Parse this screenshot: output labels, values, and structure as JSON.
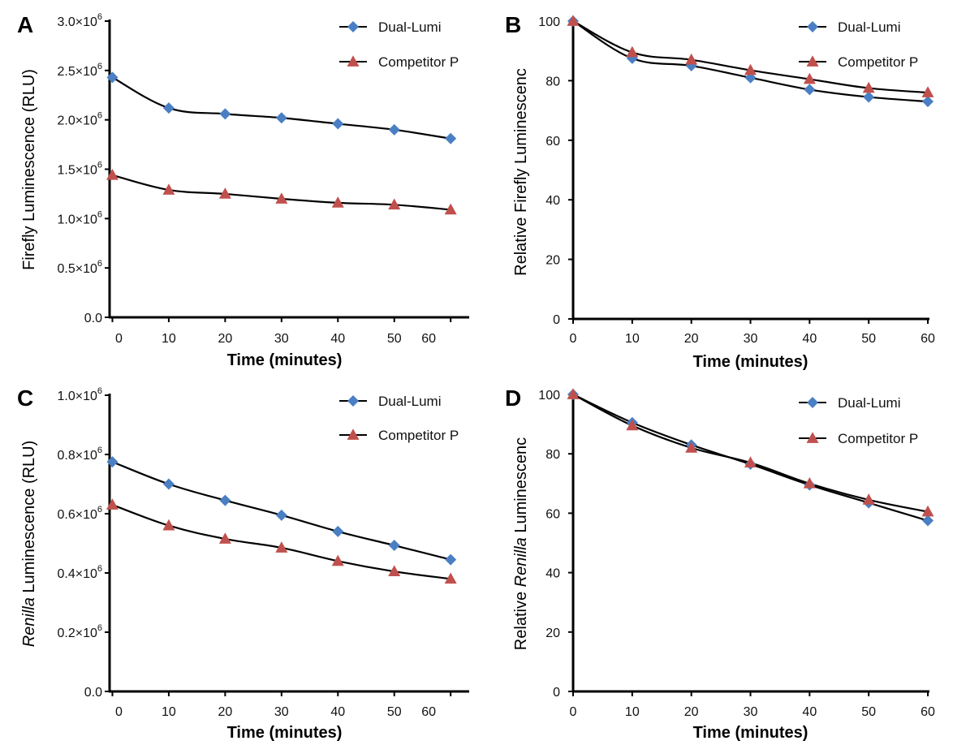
{
  "colors": {
    "diamond": "#4a7fc4",
    "triangle": "#c0504d",
    "line": "#000000"
  },
  "chart_data": [
    {
      "panel": "A",
      "type": "line",
      "xlabel": "Time (minutes)",
      "ylabel_parts": [
        {
          "text": "Firefly Luminescence (RLU)",
          "italic": false
        }
      ],
      "ylim": [
        0,
        3000000
      ],
      "y_ticks": [
        {
          "value": 0,
          "label": "0.0"
        },
        {
          "value": 500000,
          "label": "0.5×10",
          "exp": "6"
        },
        {
          "value": 1000000,
          "label": "1.0×10",
          "exp": "6"
        },
        {
          "value": 1500000,
          "label": "1.5×10",
          "exp": "6"
        },
        {
          "value": 2000000,
          "label": "2.0×10",
          "exp": "6"
        },
        {
          "value": 2500000,
          "label": "2.5×10",
          "exp": "6"
        },
        {
          "value": 3000000,
          "label": "3.0×10",
          "exp": "6"
        }
      ],
      "x_ticks": [
        "0",
        "10",
        "20",
        "30",
        "40",
        "50",
        "60"
      ],
      "x": [
        0,
        10,
        20,
        30,
        40,
        50,
        60
      ],
      "series": [
        {
          "name": "Dual-Lumi",
          "marker": "diamond",
          "values": [
            2430000,
            2120000,
            2060000,
            2020000,
            1960000,
            1900000,
            1810000
          ]
        },
        {
          "name": "Competitor P",
          "marker": "triangle",
          "values": [
            1440000,
            1290000,
            1250000,
            1200000,
            1160000,
            1140000,
            1090000
          ]
        }
      ],
      "legend": "top-right"
    },
    {
      "panel": "B",
      "type": "line",
      "xlabel": "Time (minutes)",
      "ylabel_parts": [
        {
          "text": "Relative Firefly Luminescenc",
          "italic": false
        }
      ],
      "ylim": [
        0,
        100
      ],
      "y_ticks": [
        {
          "value": 0,
          "label": "0"
        },
        {
          "value": 20,
          "label": "20"
        },
        {
          "value": 40,
          "label": "40"
        },
        {
          "value": 60,
          "label": "60"
        },
        {
          "value": 80,
          "label": "80"
        },
        {
          "value": 100,
          "label": "100"
        }
      ],
      "x_ticks": [
        "0",
        "10",
        "20",
        "30",
        "40",
        "50",
        "60"
      ],
      "x": [
        0,
        10,
        20,
        30,
        40,
        50,
        60
      ],
      "series": [
        {
          "name": "Dual-Lumi",
          "marker": "diamond",
          "values": [
            100,
            87.5,
            85,
            81,
            77,
            74.5,
            73
          ]
        },
        {
          "name": "Competitor P",
          "marker": "triangle",
          "values": [
            100,
            89.5,
            87,
            83.5,
            80.5,
            77.5,
            76
          ]
        }
      ],
      "legend": "top-right"
    },
    {
      "panel": "C",
      "type": "line",
      "xlabel": "Time (minutes)",
      "ylabel_parts": [
        {
          "text": "Renilla",
          "italic": true
        },
        {
          "text": " Luminescence (RLU)",
          "italic": false
        }
      ],
      "ylim": [
        0,
        1000000
      ],
      "y_ticks": [
        {
          "value": 0,
          "label": "0.0"
        },
        {
          "value": 200000,
          "label": "0.2×10",
          "exp": "6"
        },
        {
          "value": 400000,
          "label": "0.4×10",
          "exp": "6"
        },
        {
          "value": 600000,
          "label": "0.6×10",
          "exp": "6"
        },
        {
          "value": 800000,
          "label": "0.8×10",
          "exp": "6"
        },
        {
          "value": 1000000,
          "label": "1.0×10",
          "exp": "6"
        }
      ],
      "x_ticks": [
        "0",
        "10",
        "20",
        "30",
        "40",
        "50",
        "60"
      ],
      "x": [
        0,
        10,
        20,
        30,
        40,
        50,
        60
      ],
      "series": [
        {
          "name": "Dual-Lumi",
          "marker": "diamond",
          "values": [
            775000,
            700000,
            645000,
            595000,
            540000,
            493000,
            445000
          ]
        },
        {
          "name": "Competitor P",
          "marker": "triangle",
          "values": [
            630000,
            560000,
            515000,
            485000,
            440000,
            405000,
            380000
          ]
        }
      ],
      "legend": "top-right"
    },
    {
      "panel": "D",
      "type": "line",
      "xlabel": "Time (minutes)",
      "ylabel_parts": [
        {
          "text": "Relative ",
          "italic": false
        },
        {
          "text": "Renilla",
          "italic": true
        },
        {
          "text": " Luminescenc",
          "italic": false
        }
      ],
      "ylim": [
        0,
        100
      ],
      "y_ticks": [
        {
          "value": 0,
          "label": "0"
        },
        {
          "value": 20,
          "label": "20"
        },
        {
          "value": 40,
          "label": "40"
        },
        {
          "value": 60,
          "label": "60"
        },
        {
          "value": 80,
          "label": "80"
        },
        {
          "value": 100,
          "label": "100"
        }
      ],
      "x_ticks": [
        "0",
        "10",
        "20",
        "30",
        "40",
        "50",
        "60"
      ],
      "x": [
        0,
        10,
        20,
        30,
        40,
        50,
        60
      ],
      "series": [
        {
          "name": "Dual-Lumi",
          "marker": "diamond",
          "values": [
            100,
            90.5,
            83,
            76.5,
            69.5,
            63.5,
            57.5
          ]
        },
        {
          "name": "Competitor P",
          "marker": "triangle",
          "values": [
            100,
            89.5,
            82,
            77,
            70,
            64.5,
            60.5
          ]
        }
      ],
      "legend": "top-right"
    }
  ]
}
